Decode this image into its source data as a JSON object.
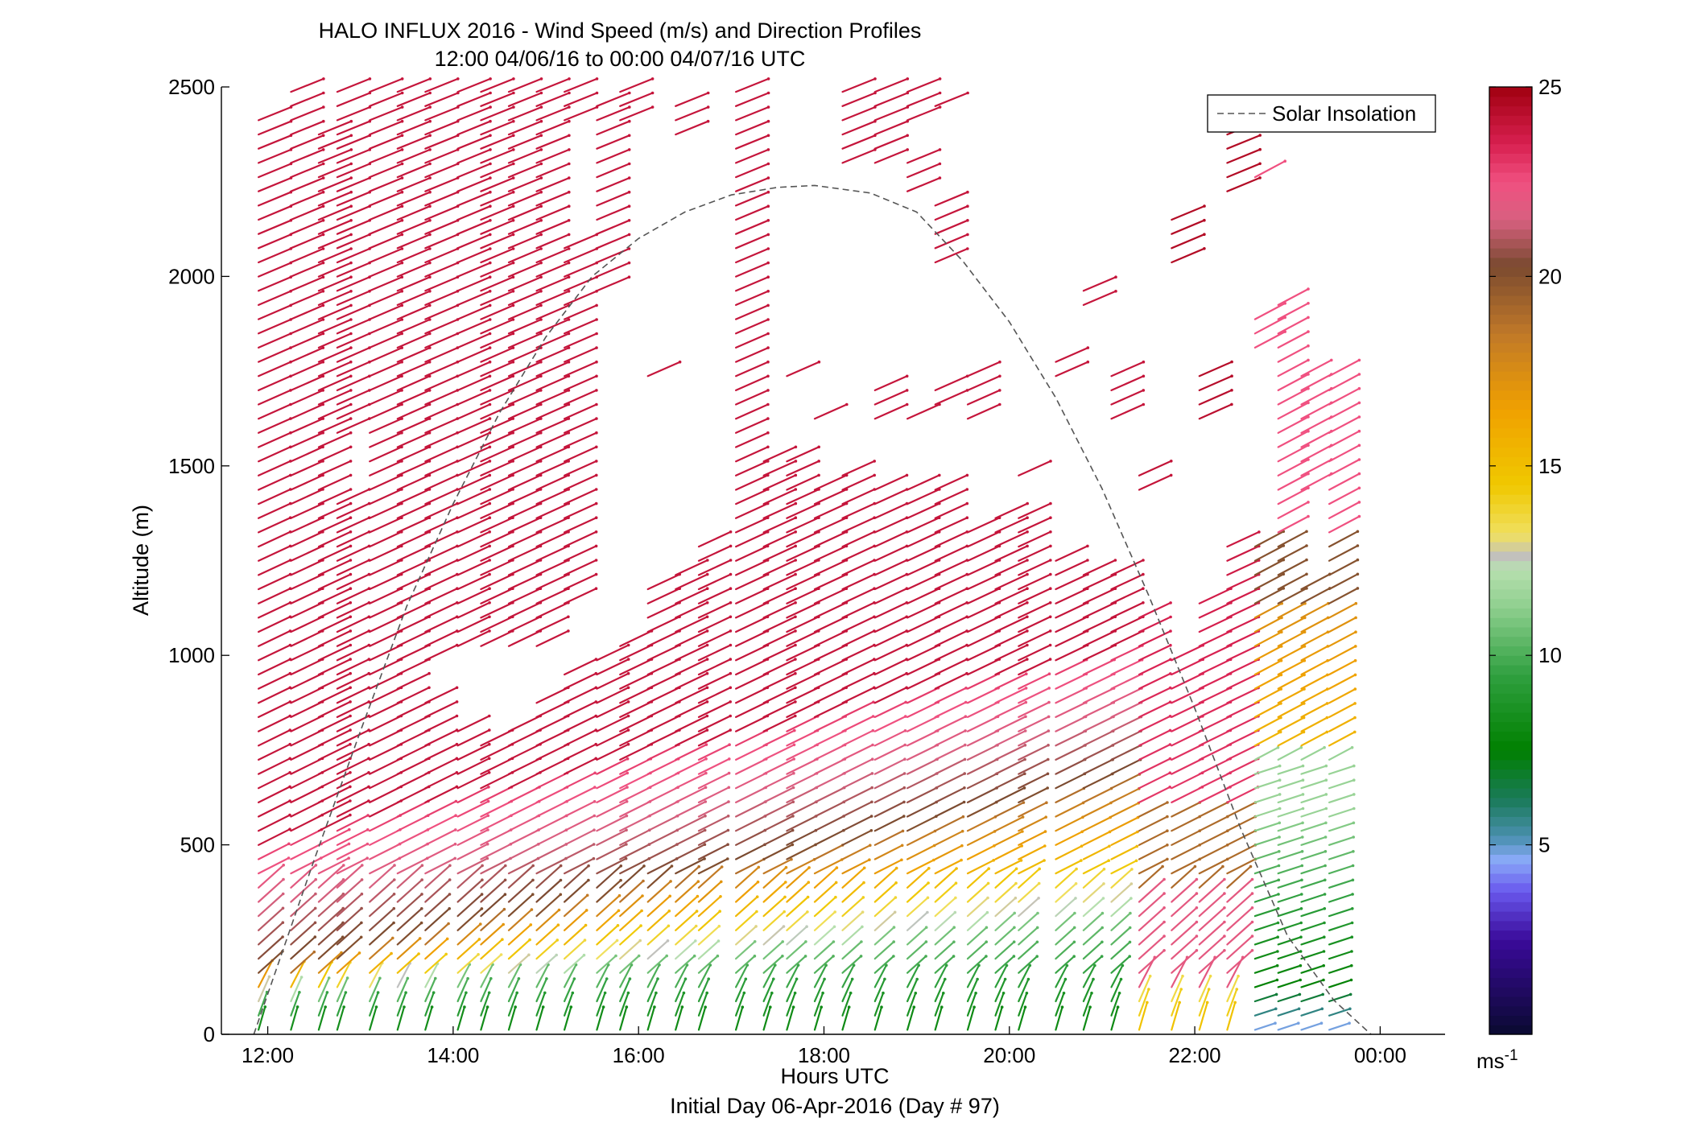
{
  "chart_data": {
    "type": "quiver",
    "title": "HALO INFLUX 2016 - Wind Speed (m/s) and Direction Profiles",
    "subtitle": "12:00 04/06/16 to 00:00 04/07/16  UTC",
    "xlabel": "Hours UTC",
    "xlabel2": "Initial Day 06-Apr-2016 (Day # 97)",
    "ylabel": "Altitude (m)",
    "xlim": [
      11.5,
      24.7
    ],
    "ylim": [
      0,
      2500
    ],
    "xticks": [
      12,
      14,
      16,
      18,
      20,
      22,
      24
    ],
    "xtick_labels": [
      "12:00",
      "14:00",
      "16:00",
      "18:00",
      "20:00",
      "22:00",
      "00:00"
    ],
    "yticks": [
      0,
      500,
      1000,
      1500,
      2000,
      2500
    ],
    "ytick_labels": [
      "0",
      "500",
      "1000",
      "1500",
      "2000",
      "2500"
    ],
    "legend": {
      "label": "Solar Insolation",
      "placement": "top-right"
    },
    "colorbar": {
      "range": [
        0,
        25
      ],
      "ticks": [
        5,
        10,
        15,
        20,
        25
      ],
      "tick_labels": [
        "5",
        "10",
        "15",
        "20",
        "25"
      ],
      "unit_label": "ms",
      "unit_exponent": "-1",
      "stops": [
        [
          0,
          "#0a0a30"
        ],
        [
          2.5,
          "#3a0a9a"
        ],
        [
          3.8,
          "#6a5aee"
        ],
        [
          4.6,
          "#8aaaf8"
        ],
        [
          5.2,
          "#4a90b0"
        ],
        [
          6.2,
          "#1a7a5a"
        ],
        [
          7.5,
          "#008000"
        ],
        [
          9.5,
          "#30a040"
        ],
        [
          11.3,
          "#90d090"
        ],
        [
          12.3,
          "#b8e0b0"
        ],
        [
          12.6,
          "#c0c0c0"
        ],
        [
          13.2,
          "#f0e060"
        ],
        [
          14.5,
          "#f0c800"
        ],
        [
          16.5,
          "#f0a000"
        ],
        [
          18.5,
          "#c07828"
        ],
        [
          20.3,
          "#7a4a30"
        ],
        [
          21.5,
          "#d86080"
        ],
        [
          22.5,
          "#f05080"
        ],
        [
          23.5,
          "#d82050"
        ],
        [
          25,
          "#a00010"
        ]
      ]
    },
    "solar_insolation": {
      "style": "dashed",
      "color": "#555555",
      "x": [
        11.85,
        12.5,
        13.0,
        13.5,
        14.0,
        14.5,
        15.0,
        15.5,
        16.0,
        16.5,
        17.0,
        17.5,
        17.9,
        18.5,
        19.0,
        19.5,
        20.0,
        20.5,
        21.0,
        21.5,
        22.0,
        22.5,
        23.0,
        23.5,
        23.9
      ],
      "y": [
        0,
        460,
        800,
        1130,
        1400,
        1640,
        1840,
        2000,
        2100,
        2170,
        2215,
        2235,
        2240,
        2220,
        2170,
        2040,
        1880,
        1680,
        1440,
        1160,
        860,
        540,
        260,
        90,
        0
      ]
    },
    "profiles": [
      {
        "t": 11.9,
        "top": 2440,
        "gaps": []
      },
      {
        "t": 12.25,
        "top": 2490,
        "gaps": []
      },
      {
        "t": 12.55,
        "top": 2400,
        "gaps": []
      },
      {
        "t": 12.75,
        "top": 2490,
        "gaps": [
          [
            1400,
            1570
          ]
        ]
      },
      {
        "t": 13.1,
        "top": 2490,
        "gaps": []
      },
      {
        "t": 13.4,
        "top": 2490,
        "gaps": []
      },
      {
        "t": 13.7,
        "top": 2490,
        "gaps": [
          [
            900,
            950
          ]
        ]
      },
      {
        "t": 14.05,
        "top": 2490,
        "gaps": [
          [
            800,
            1000
          ]
        ]
      },
      {
        "t": 14.3,
        "top": 2490,
        "gaps": [
          [
            790,
            1000
          ]
        ]
      },
      {
        "t": 14.6,
        "top": 2490,
        "gaps": [
          [
            820,
            1000
          ]
        ]
      },
      {
        "t": 14.9,
        "top": 2490,
        "gaps": [
          [
            900,
            1000
          ]
        ]
      },
      {
        "t": 15.2,
        "top": 2490,
        "gaps": [
          [
            950,
            1100
          ],
          [
            2100,
            2400
          ]
        ]
      },
      {
        "t": 15.55,
        "top": 2470,
        "gaps": [
          [
            1010,
            1950
          ]
        ]
      },
      {
        "t": 15.8,
        "top": 2490,
        "gaps": [
          [
            1060,
            2400
          ]
        ]
      },
      {
        "t": 16.1,
        "top": 1740,
        "gaps": [
          [
            1180,
            1700
          ]
        ]
      },
      {
        "t": 16.4,
        "top": 2480,
        "gaps": [
          [
            1240,
            2370
          ]
        ]
      },
      {
        "t": 16.65,
        "top": 1320,
        "gaps": []
      },
      {
        "t": 17.05,
        "top": 2490,
        "gaps": []
      },
      {
        "t": 17.35,
        "top": 1520,
        "gaps": []
      },
      {
        "t": 17.6,
        "top": 1750,
        "gaps": [
          [
            1540,
            1720
          ]
        ]
      },
      {
        "t": 17.9,
        "top": 1640,
        "gaps": [
          [
            1450,
            1600
          ]
        ]
      },
      {
        "t": 18.2,
        "top": 2490,
        "gaps": [
          [
            1500,
            2280
          ]
        ]
      },
      {
        "t": 18.55,
        "top": 2490,
        "gaps": [
          [
            1450,
            1600
          ],
          [
            1700,
            2280
          ]
        ]
      },
      {
        "t": 18.9,
        "top": 2490,
        "gaps": [
          [
            1450,
            1600
          ],
          [
            1650,
            2200
          ],
          [
            2300,
            2380
          ]
        ]
      },
      {
        "t": 19.2,
        "top": 2480,
        "gaps": [
          [
            1440,
            1640
          ],
          [
            1700,
            2000
          ],
          [
            2220,
            2420
          ]
        ]
      },
      {
        "t": 19.55,
        "top": 1760,
        "gaps": [
          [
            1360,
            1600
          ]
        ]
      },
      {
        "t": 19.85,
        "top": 1380,
        "gaps": []
      },
      {
        "t": 20.1,
        "top": 1500,
        "gaps": [
          [
            1380,
            1440
          ]
        ]
      },
      {
        "t": 20.5,
        "top": 1800,
        "gaps": [
          [
            1280,
            1700
          ]
        ]
      },
      {
        "t": 20.8,
        "top": 1980,
        "gaps": [
          [
            1240,
            1900
          ]
        ]
      },
      {
        "t": 21.1,
        "top": 1760,
        "gaps": [
          [
            1230,
            1600
          ]
        ]
      },
      {
        "t": 21.4,
        "top": 1500,
        "gaps": [
          [
            1100,
            1420
          ]
        ]
      },
      {
        "t": 21.75,
        "top": 2180,
        "gaps": [
          [
            1000,
            2000
          ]
        ]
      },
      {
        "t": 22.05,
        "top": 1740,
        "gaps": [
          [
            1150,
            1600
          ]
        ]
      },
      {
        "t": 22.35,
        "top": 2380,
        "gaps": [
          [
            1300,
            2200
          ]
        ]
      },
      {
        "t": 22.65,
        "top": 2270,
        "gaps": [
          [
            1300,
            1800
          ],
          [
            1900,
            2240
          ]
        ]
      },
      {
        "t": 22.9,
        "top": 1950,
        "gaps": []
      },
      {
        "t": 23.15,
        "top": 1750,
        "gaps": [
          [
            1200,
            1400
          ]
        ]
      },
      {
        "t": 23.45,
        "top": 1750,
        "gaps": []
      }
    ]
  }
}
